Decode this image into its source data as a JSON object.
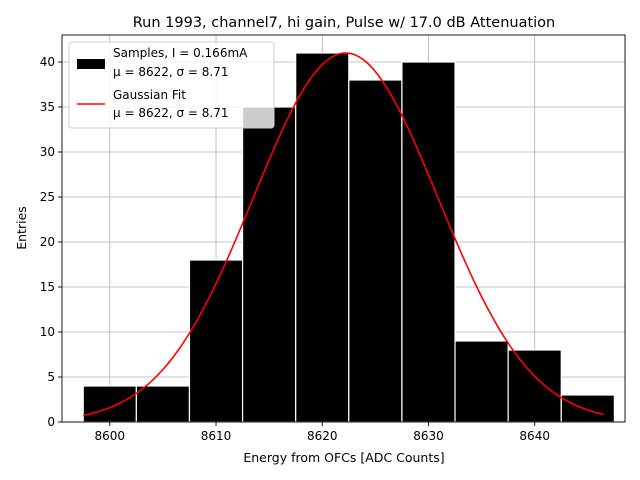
{
  "chart_data": {
    "type": "bar",
    "title": "Run 1993, channel7, hi gain, Pulse w/ 17.0 dB Attenuation",
    "xlabel": "Energy from OFCs [ADC Counts]",
    "ylabel": "Entries",
    "xlim": [
      8595.5,
      8648.5
    ],
    "ylim": [
      0,
      43
    ],
    "xticks": [
      8600,
      8610,
      8620,
      8630,
      8640
    ],
    "yticks": [
      0,
      5,
      10,
      15,
      20,
      25,
      30,
      35,
      40
    ],
    "grid": true,
    "legend_position": "top-left",
    "bins": [
      {
        "x0": 8597.5,
        "x1": 8602.5,
        "count": 4
      },
      {
        "x0": 8602.5,
        "x1": 8607.5,
        "count": 4
      },
      {
        "x0": 8607.5,
        "x1": 8612.5,
        "count": 18
      },
      {
        "x0": 8612.5,
        "x1": 8617.5,
        "count": 35
      },
      {
        "x0": 8617.5,
        "x1": 8622.5,
        "count": 41
      },
      {
        "x0": 8622.5,
        "x1": 8627.5,
        "count": 38
      },
      {
        "x0": 8627.5,
        "x1": 8632.5,
        "count": 40
      },
      {
        "x0": 8632.5,
        "x1": 8637.5,
        "count": 9
      },
      {
        "x0": 8637.5,
        "x1": 8642.5,
        "count": 8
      },
      {
        "x0": 8642.5,
        "x1": 8647.5,
        "count": 3
      }
    ],
    "fit": {
      "mu": 8622.2,
      "sigma": 8.71,
      "amplitude": 41,
      "x_range": [
        8597.5,
        8646.5
      ]
    },
    "series": [
      {
        "name": "Samples, I = 0.166mA",
        "stats": "μ = 8622, σ = 8.71",
        "color": "#000000",
        "kind": "histogram"
      },
      {
        "name": "Gaussian Fit",
        "stats": "μ = 8622, σ = 8.71",
        "color": "#ff0000",
        "kind": "line"
      }
    ]
  }
}
